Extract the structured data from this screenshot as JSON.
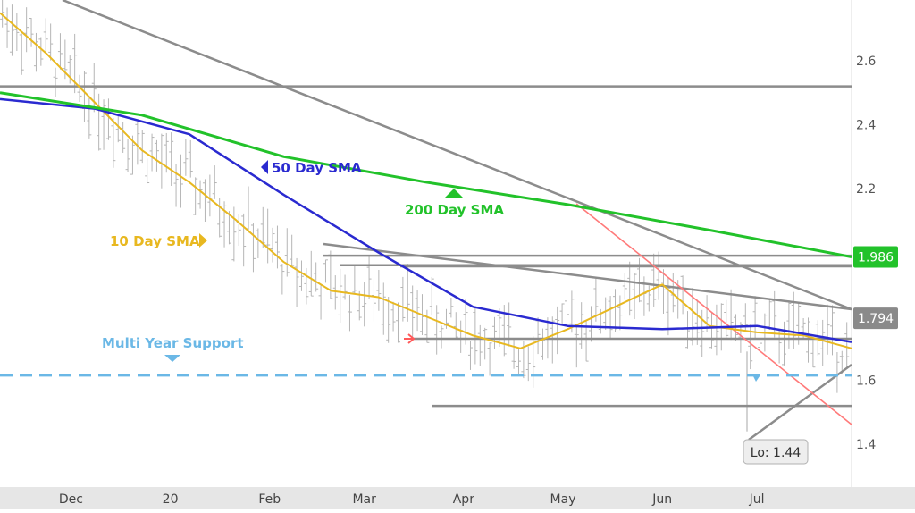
{
  "chart_data": {
    "type": "line",
    "title": "",
    "xlabel": "",
    "ylabel": "",
    "x_ticks": [
      "Dec",
      "20",
      "Feb",
      "Mar",
      "Apr",
      "May",
      "Jun",
      "Jul"
    ],
    "y_ticks": [
      1.4,
      1.6,
      1.8,
      2.0,
      2.2,
      2.4,
      2.6
    ],
    "y_tick_labels": [
      "1.4",
      "1.6",
      "",
      "",
      "2.2",
      "2.4",
      "2.6"
    ],
    "ylim": [
      1.2,
      2.75
    ],
    "price_labels": {
      "sma200_last": "1.986",
      "close_last": "1.794"
    },
    "colors": {
      "price_bars": "#b5b5b5",
      "sma10": "#e8b820",
      "sma50": "#2a2ad0",
      "sma200": "#22c22a",
      "trendlines": "#8c8c8c",
      "support": "#6bb8e6",
      "red_trend": "#ff7a7a",
      "badge_green": "#22c22a",
      "badge_grey": "#8a8a8a"
    },
    "series": [
      {
        "name": "10 Day SMA",
        "x": [
          0,
          10,
          20,
          30,
          40,
          50,
          60,
          70,
          80,
          90,
          100,
          110,
          120,
          130,
          140,
          150,
          160,
          170,
          180
        ],
        "values": [
          2.75,
          2.62,
          2.47,
          2.32,
          2.22,
          2.1,
          1.97,
          1.88,
          1.86,
          1.8,
          1.74,
          1.7,
          1.76,
          1.83,
          1.9,
          1.77,
          1.75,
          1.74,
          1.7
        ]
      },
      {
        "name": "50 Day SMA",
        "x": [
          0,
          20,
          40,
          60,
          80,
          100,
          120,
          140,
          160,
          180
        ],
        "values": [
          2.48,
          2.45,
          2.37,
          2.18,
          2.0,
          1.83,
          1.77,
          1.76,
          1.77,
          1.72
        ]
      },
      {
        "name": "200 Day SMA",
        "x": [
          0,
          30,
          60,
          90,
          120,
          150,
          180
        ],
        "values": [
          2.5,
          2.43,
          2.3,
          2.22,
          2.15,
          2.07,
          1.986
        ]
      }
    ],
    "annotations": [
      {
        "text": "50 Day SMA",
        "color": "#2a2ad0",
        "arrow": "left"
      },
      {
        "text": "200 Day SMA",
        "color": "#22c22a",
        "arrow": "up"
      },
      {
        "text": "10 Day SMA",
        "color": "#e8b820",
        "arrow": "right"
      },
      {
        "text": "Multi Year Support",
        "color": "#6bb8e6",
        "arrow": "down"
      },
      {
        "text": "Lo: 1.44",
        "value": 1.44
      }
    ],
    "levels": {
      "support": 1.615,
      "horizontal_resistance": 2.52,
      "range_top": 1.99,
      "range_mid": 1.96,
      "range_low": 1.73,
      "range_bottom": 1.52
    },
    "grid": false,
    "legend": "none"
  }
}
